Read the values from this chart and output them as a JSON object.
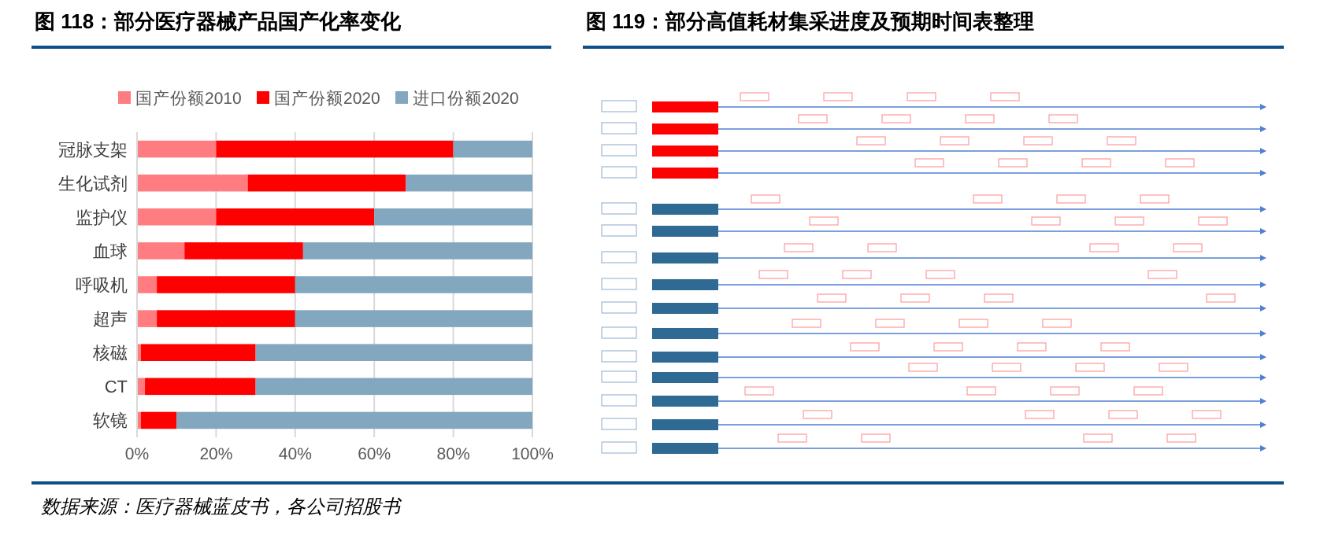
{
  "chart_data": [
    {
      "type": "bar",
      "title": "图 118：部分医疗器械产品国产化率变化",
      "orientation": "horizontal",
      "stacked": true,
      "categories": [
        "冠脉支架",
        "生化试剂",
        "监护仪",
        "血球",
        "呼吸机",
        "超声",
        "核磁",
        "CT",
        "软镜"
      ],
      "series": [
        {
          "name": "国产份额2010",
          "color": "#ff7c80",
          "values": [
            20,
            28,
            20,
            12,
            5,
            5,
            1,
            2,
            1
          ]
        },
        {
          "name": "国产份额2020",
          "color": "#ff0000",
          "values": [
            60,
            40,
            40,
            30,
            35,
            35,
            29,
            28,
            9
          ]
        },
        {
          "name": "进口份额2020",
          "color": "#84a7c0",
          "values": [
            20,
            32,
            40,
            58,
            60,
            60,
            70,
            70,
            90
          ]
        }
      ],
      "xlim": [
        0,
        100
      ],
      "xticks": [
        {
          "value": 0,
          "label": "0%"
        },
        {
          "value": 20,
          "label": "20%"
        },
        {
          "value": 40,
          "label": "40%"
        },
        {
          "value": 60,
          "label": "60%"
        },
        {
          "value": 80,
          "label": "80%"
        },
        {
          "value": 100,
          "label": "100%"
        }
      ],
      "grid": "x",
      "legend": "top",
      "annotations": [
        "数据来源：医疗器械蓝皮书，各公司招股书"
      ]
    },
    {
      "type": "other",
      "title": "图 119：部分高值耗材集采进度及预期时间表整理"
    }
  ]
}
